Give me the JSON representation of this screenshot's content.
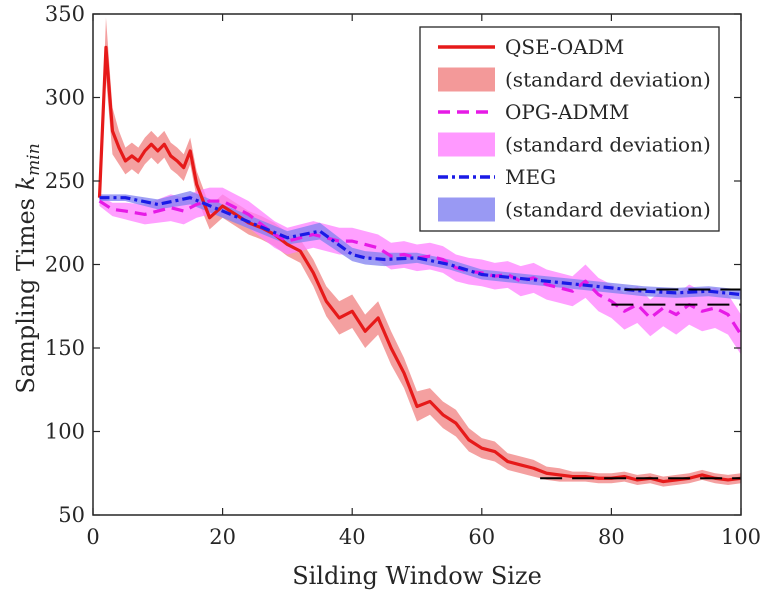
{
  "chart_data": {
    "type": "line",
    "title": "",
    "xlabel": "Silding Window Size",
    "ylabel_main": "Sampling Times ",
    "ylabel_var": "k",
    "ylabel_sub": "min",
    "xlim": [
      0,
      100
    ],
    "ylim": [
      50,
      350
    ],
    "x_ticks": [
      "0",
      "20",
      "40",
      "60",
      "80",
      "100"
    ],
    "y_ticks": [
      "50",
      "100",
      "150",
      "200",
      "250",
      "300",
      "350"
    ],
    "x_tick_values": [
      0,
      20,
      40,
      60,
      80,
      100
    ],
    "y_tick_values": [
      50,
      100,
      150,
      200,
      250,
      300,
      350
    ],
    "grid": false,
    "legend_position": "top-right",
    "legend": [
      {
        "label": "QSE-OADM",
        "kind": "line",
        "color": "#e61a1a",
        "dash": "solid"
      },
      {
        "label": "(standard deviation)",
        "kind": "band",
        "color": "#f08080"
      },
      {
        "label": "OPG-ADMM",
        "kind": "line",
        "color": "#e61ae6",
        "dash": "dashed"
      },
      {
        "label": "(standard deviation)",
        "kind": "band",
        "color": "#ff80ff"
      },
      {
        "label": "MEG",
        "kind": "line",
        "color": "#1a1ae6",
        "dash": "dashdot"
      },
      {
        "label": "(standard deviation)",
        "kind": "band",
        "color": "#8080f0"
      }
    ],
    "series": [
      {
        "name": "QSE-OADM",
        "color": "#e61a1a",
        "band_color": "#f08080",
        "dash": "solid",
        "x": [
          1,
          2,
          3,
          4,
          5,
          6,
          7,
          8,
          9,
          10,
          11,
          12,
          13,
          14,
          15,
          16,
          18,
          20,
          22,
          24,
          26,
          28,
          30,
          32,
          34,
          36,
          38,
          40,
          42,
          44,
          46,
          48,
          50,
          52,
          54,
          56,
          58,
          60,
          62,
          64,
          66,
          68,
          70,
          72,
          74,
          76,
          78,
          80,
          82,
          84,
          86,
          88,
          90,
          92,
          94,
          96,
          98,
          100
        ],
        "y": [
          240,
          330,
          280,
          270,
          262,
          265,
          262,
          268,
          272,
          268,
          272,
          265,
          262,
          258,
          268,
          248,
          228,
          235,
          230,
          225,
          222,
          218,
          212,
          208,
          195,
          178,
          168,
          172,
          160,
          168,
          150,
          135,
          115,
          118,
          110,
          105,
          95,
          90,
          88,
          82,
          80,
          78,
          75,
          74,
          73,
          73,
          72,
          72,
          73,
          71,
          72,
          70,
          71,
          72,
          74,
          72,
          71,
          72
        ],
        "sd": [
          2,
          18,
          14,
          10,
          8,
          8,
          8,
          8,
          8,
          8,
          8,
          8,
          8,
          8,
          8,
          8,
          7,
          7,
          7,
          7,
          7,
          7,
          7,
          7,
          8,
          9,
          10,
          10,
          10,
          10,
          10,
          9,
          9,
          8,
          8,
          8,
          7,
          6,
          6,
          5,
          5,
          5,
          4,
          4,
          3,
          3,
          3,
          3,
          3,
          3,
          3,
          3,
          3,
          3,
          3,
          3,
          3,
          3
        ]
      },
      {
        "name": "OPG-ADMM",
        "color": "#e61ae6",
        "band_color": "#ff80ff",
        "dash": "dashed",
        "x": [
          1,
          3,
          5,
          8,
          10,
          12,
          14,
          16,
          18,
          20,
          22,
          24,
          26,
          28,
          30,
          32,
          34,
          36,
          38,
          40,
          42,
          44,
          46,
          48,
          50,
          52,
          54,
          56,
          58,
          60,
          62,
          64,
          66,
          68,
          70,
          72,
          74,
          76,
          78,
          80,
          82,
          84,
          86,
          88,
          90,
          92,
          94,
          96,
          98,
          100
        ],
        "y": [
          238,
          233,
          232,
          230,
          232,
          234,
          232,
          236,
          238,
          238,
          234,
          230,
          224,
          218,
          214,
          216,
          218,
          216,
          214,
          214,
          212,
          210,
          205,
          206,
          204,
          205,
          203,
          198,
          196,
          195,
          193,
          194,
          190,
          192,
          188,
          186,
          184,
          190,
          182,
          178,
          172,
          176,
          168,
          174,
          170,
          176,
          172,
          174,
          170,
          158
        ],
        "sd": [
          3,
          4,
          5,
          6,
          7,
          8,
          8,
          8,
          8,
          8,
          8,
          8,
          8,
          8,
          8,
          8,
          8,
          8,
          8,
          8,
          8,
          8,
          8,
          8,
          8,
          8,
          8,
          8,
          8,
          8,
          8,
          8,
          9,
          9,
          9,
          9,
          9,
          10,
          10,
          10,
          11,
          11,
          11,
          11,
          12,
          12,
          12,
          12,
          12,
          12
        ]
      },
      {
        "name": "MEG",
        "color": "#1a1ae6",
        "band_color": "#8080f0",
        "dash": "dashdot",
        "x": [
          1,
          5,
          10,
          15,
          20,
          25,
          30,
          35,
          40,
          42,
          45,
          50,
          55,
          60,
          65,
          70,
          75,
          80,
          85,
          90,
          95,
          100
        ],
        "y": [
          240,
          240,
          236,
          240,
          232,
          224,
          216,
          220,
          206,
          204,
          203,
          204,
          200,
          194,
          192,
          190,
          188,
          186,
          184,
          183,
          184,
          182
        ],
        "sd": [
          2,
          2,
          3,
          4,
          4,
          4,
          4,
          5,
          4,
          4,
          4,
          3,
          3,
          3,
          3,
          3,
          3,
          3,
          3,
          3,
          3,
          3
        ]
      }
    ],
    "reference_lines": [
      {
        "color": "#000000",
        "dash": "longdash",
        "x": [
          69,
          100
        ],
        "y": [
          72,
          72
        ]
      },
      {
        "color": "#000000",
        "dash": "longdash",
        "x": [
          80,
          100
        ],
        "y": [
          176,
          176
        ]
      },
      {
        "color": "#000000",
        "dash": "longdash",
        "x": [
          82,
          100
        ],
        "y": [
          185,
          185
        ]
      }
    ]
  }
}
